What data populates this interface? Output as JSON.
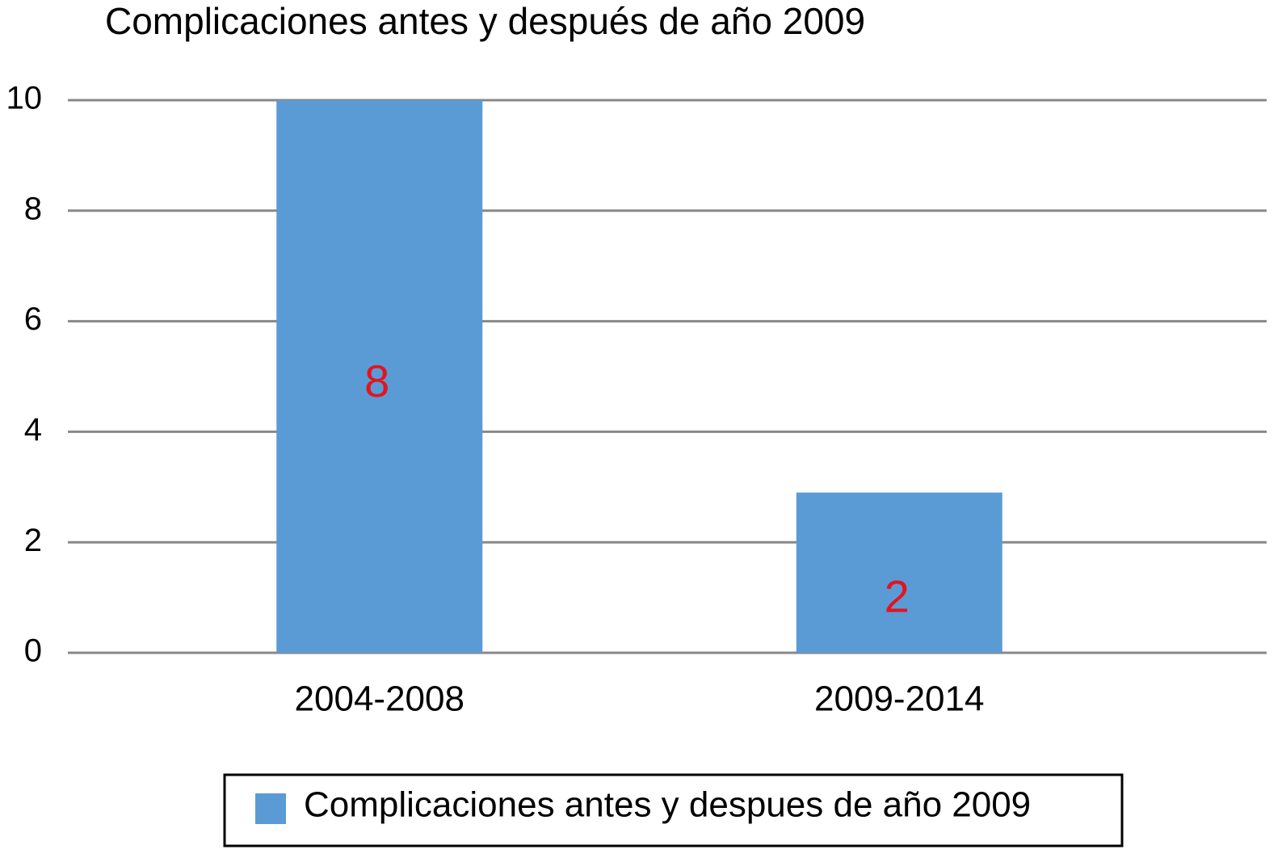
{
  "chart_data": {
    "type": "bar",
    "title": "Complicaciones antes y después de año 2009",
    "categories": [
      "2004-2008",
      "2009-2014"
    ],
    "series": [
      {
        "name": "Complicaciones antes y despues de año 2009",
        "color": "#5b9bd5",
        "values": [
          10,
          2.9
        ]
      }
    ],
    "annotations": [
      "8",
      "2"
    ],
    "ylim": [
      0,
      10
    ],
    "yticks": [
      0,
      2,
      4,
      6,
      8,
      10
    ],
    "grid": true,
    "legend": "bottom"
  }
}
